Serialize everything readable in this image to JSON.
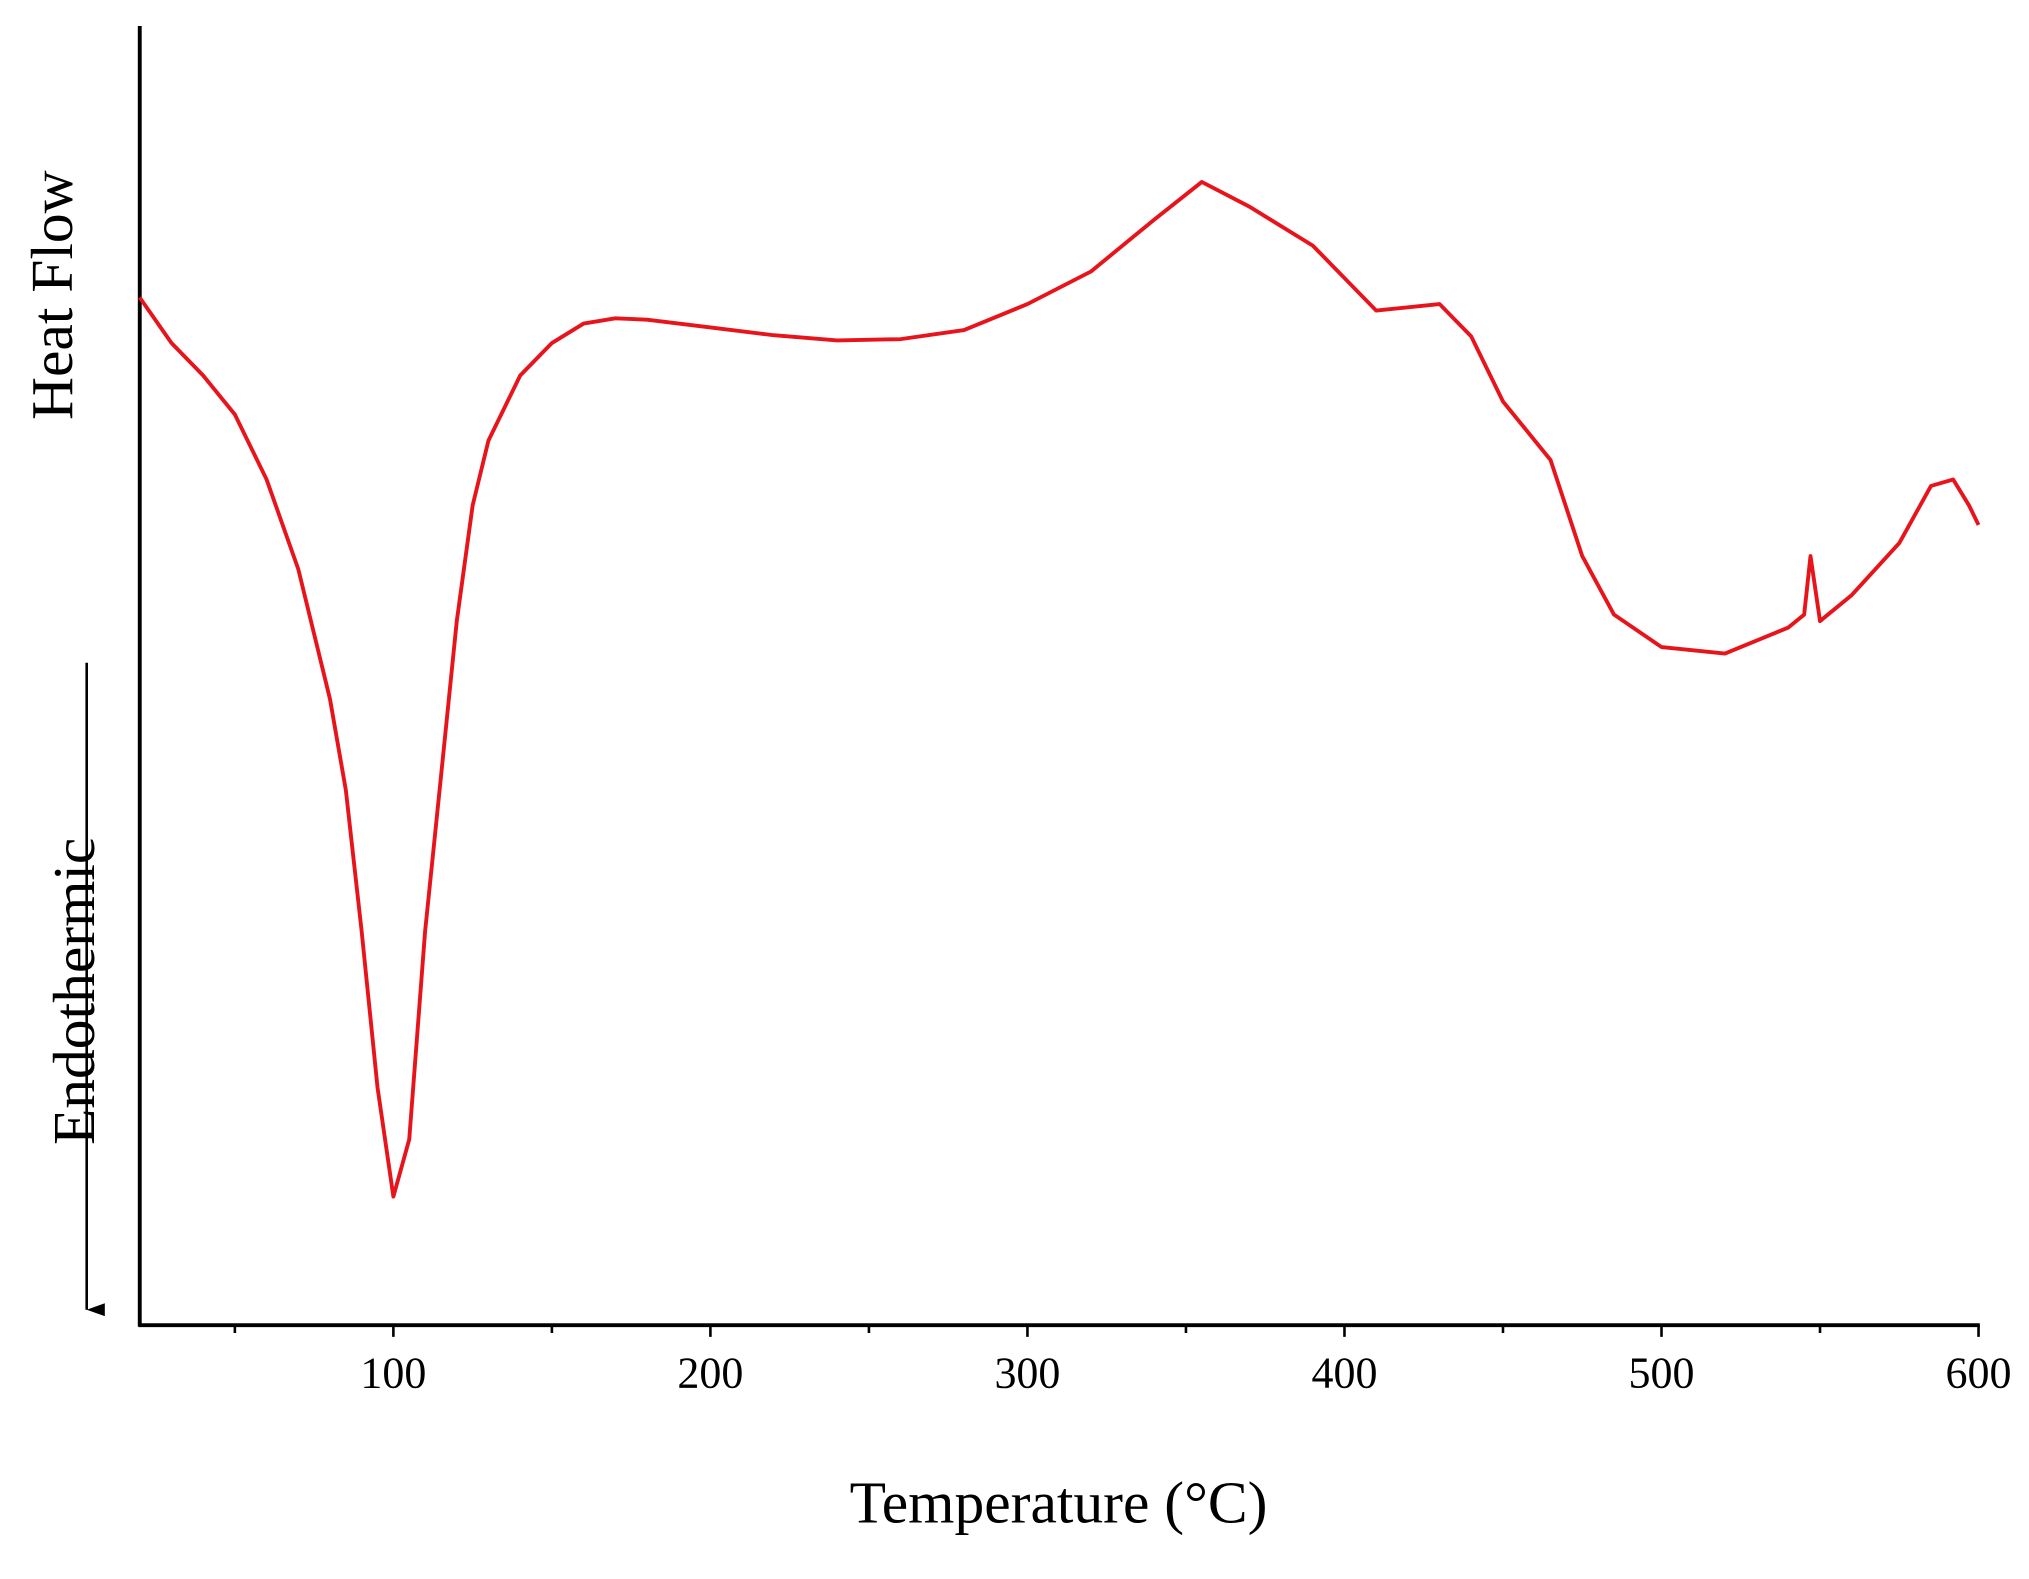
{
  "chart_data": {
    "type": "line",
    "x_label": "Temperature (°C)",
    "y_label": "Heat Flow",
    "annotation": "Endothermic",
    "xlim": [
      20,
      600
    ],
    "xticks": [
      100,
      200,
      300,
      400,
      500,
      600
    ],
    "xminor_ticks": [
      50,
      150,
      250,
      350,
      450,
      550
    ],
    "ylim": [
      0,
      100
    ],
    "series": [
      {
        "color": "#e8141c",
        "x": [
          20,
          30,
          40,
          50,
          60,
          70,
          80,
          85,
          90,
          95,
          100,
          105,
          110,
          115,
          120,
          125,
          130,
          140,
          150,
          160,
          170,
          180,
          200,
          220,
          240,
          260,
          280,
          300,
          320,
          340,
          355,
          370,
          390,
          400,
          410,
          430,
          440,
          450,
          460,
          465,
          475,
          485,
          500,
          520,
          540,
          545,
          547,
          550,
          560,
          575,
          585,
          592,
          597,
          600
        ],
        "values": [
          79.1,
          75.6,
          73.1,
          70.1,
          65.1,
          58.2,
          48.2,
          41.2,
          30.3,
          18.3,
          9.9,
          14.3,
          30.3,
          42.2,
          54.2,
          63.1,
          68.1,
          73.1,
          75.6,
          77.1,
          77.5,
          77.4,
          76.8,
          76.2,
          75.8,
          75.9,
          76.6,
          78.6,
          81.1,
          85.1,
          88.0,
          86.1,
          83.1,
          80.6,
          78.1,
          78.6,
          76.1,
          71.1,
          68.1,
          66.6,
          59.2,
          54.7,
          52.2,
          51.7,
          53.7,
          54.7,
          59.2,
          54.2,
          56.2,
          60.2,
          64.6,
          65.1,
          63.1,
          61.6
        ]
      }
    ]
  }
}
